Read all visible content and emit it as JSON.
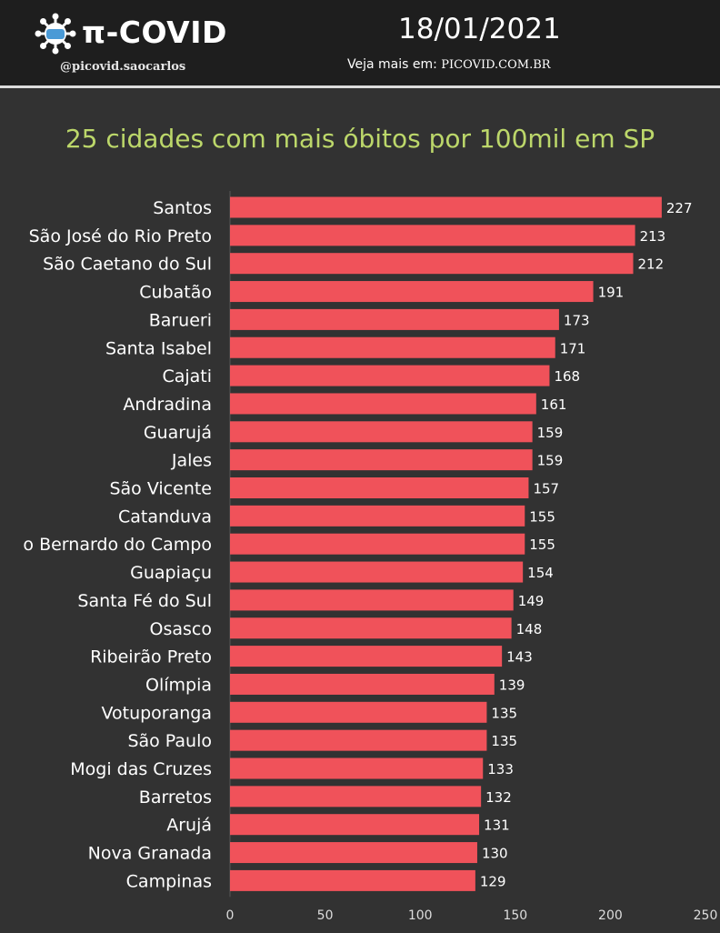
{
  "header": {
    "brand": "π-COVID",
    "handle": "@picovid.saocarlos",
    "date": "18/01/2021",
    "see_more_label": "Veja mais em:",
    "see_more_url": "PICOVID.COM.BR",
    "logo_icon": "virus-icon"
  },
  "colors": {
    "background": "#323232",
    "header_background": "#1e1e1e",
    "bar": "#f0525a",
    "title": "#bcd76a",
    "text": "#ffffff"
  },
  "chart_data": {
    "type": "bar",
    "orientation": "horizontal",
    "title": "25 cidades com mais óbitos por 100mil em SP",
    "categories": [
      "Santos",
      "São José do Rio Preto",
      "São Caetano do Sul",
      "Cubatão",
      "Barueri",
      "Santa Isabel",
      "Cajati",
      "Andradina",
      "Guarujá",
      "Jales",
      "São Vicente",
      "Catanduva",
      "o Bernardo do Campo",
      "Guapiaçu",
      "Santa Fé do Sul",
      "Osasco",
      "Ribeirão Preto",
      "Olímpia",
      "Votuporanga",
      "São Paulo",
      "Mogi das Cruzes",
      "Barretos",
      "Arujá",
      "Nova Granada",
      "Campinas"
    ],
    "values": [
      227,
      213,
      212,
      191,
      173,
      171,
      168,
      161,
      159,
      159,
      157,
      155,
      155,
      154,
      149,
      148,
      143,
      139,
      135,
      135,
      133,
      132,
      131,
      130,
      129
    ],
    "xlim": [
      0,
      250
    ],
    "xticks": [
      0,
      50,
      100,
      150,
      200,
      250
    ],
    "xlabel": "",
    "ylabel": "",
    "grid": false
  }
}
